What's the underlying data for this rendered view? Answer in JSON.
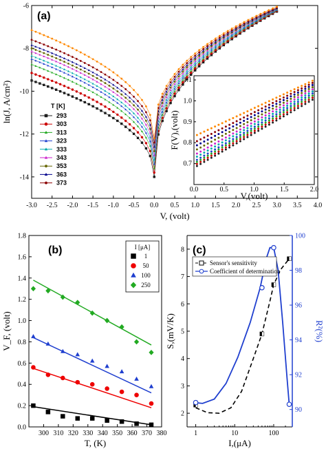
{
  "chart_data": [
    {
      "panel": "(a)",
      "type": "scatter",
      "xlabel": "V, (volt)",
      "ylabel": "ln(J, A/cm²)",
      "xlim": [
        -3.0,
        4.0
      ],
      "ylim": [
        -15,
        -6
      ],
      "xticks": [
        "-3.0",
        "-2.5",
        "-2.0",
        "-1.5",
        "-1.0",
        "-0.5",
        "0.0",
        "0.5",
        "1.0",
        "1.5",
        "2.0",
        "2.5",
        "3.0",
        "3.5",
        "4.0"
      ],
      "yticks": [
        "-14",
        "-12",
        "-10",
        "-8",
        "-6"
      ],
      "legend_title": "T [K]",
      "legend_position": "left",
      "colors": [
        "#222222",
        "#cc0000",
        "#22aa22",
        "#1f3fcf",
        "#00aaaa",
        "#cc22cc",
        "#666600",
        "#00008b",
        "#8b0000",
        "#ff8800"
      ],
      "series": [
        {
          "name": "293",
          "y_at_minus3": -9.5,
          "y_at_plus3": -6.28,
          "y_min": -14.0
        },
        {
          "name": "303",
          "y_at_minus3": -9.15,
          "y_at_plus3": -6.25,
          "y_min": -13.8
        },
        {
          "name": "313",
          "y_at_minus3": -8.75,
          "y_at_plus3": -6.23,
          "y_min": -13.6
        },
        {
          "name": "323",
          "y_at_minus3": -8.5,
          "y_at_plus3": -6.21,
          "y_min": -13.4
        },
        {
          "name": "333",
          "y_at_minus3": -8.35,
          "y_at_plus3": -6.19,
          "y_min": -13.2
        },
        {
          "name": "343",
          "y_at_minus3": -8.15,
          "y_at_plus3": -6.17,
          "y_min": -13.0
        },
        {
          "name": "353",
          "y_at_minus3": -8.0,
          "y_at_plus3": -6.15,
          "y_min": -12.8
        },
        {
          "name": "363",
          "y_at_minus3": -7.85,
          "y_at_plus3": -6.13,
          "y_min": -12.6
        },
        {
          "name": "373",
          "y_at_minus3": -7.6,
          "y_at_plus3": -6.1,
          "y_min": -12.4
        },
        {
          "name": "",
          "y_at_minus3": -7.15,
          "y_at_plus3": -6.05,
          "y_min": -12.2
        }
      ],
      "inset": {
        "xlabel": "V,(volt)",
        "ylabel": "F(V),(volt)",
        "xlim": [
          0.0,
          2.0
        ],
        "ylim": [
          0.6,
          1.12
        ],
        "xticks": [
          "0.0",
          "0.5",
          "1.0",
          "1.5",
          "2.0"
        ],
        "yticks": [
          "0.7",
          "0.8",
          "0.9",
          "1.0",
          "1.1"
        ],
        "series": [
          {
            "y0": 0.68,
            "y1": 1.01
          },
          {
            "y0": 0.69,
            "y1": 1.02
          },
          {
            "y0": 0.7,
            "y1": 1.03
          },
          {
            "y0": 0.71,
            "y1": 1.04
          },
          {
            "y0": 0.725,
            "y1": 1.05
          },
          {
            "y0": 0.74,
            "y1": 1.06
          },
          {
            "y0": 0.76,
            "y1": 1.07
          },
          {
            "y0": 0.78,
            "y1": 1.08
          },
          {
            "y0": 0.8,
            "y1": 1.09
          },
          {
            "y0": 0.83,
            "y1": 1.1
          }
        ]
      }
    },
    {
      "panel": "(b)",
      "type": "scatter",
      "xlabel": "T, (K)",
      "ylabel": "V_F, (volt)",
      "xlim": [
        290,
        380
      ],
      "ylim": [
        0.0,
        1.8
      ],
      "xticks": [
        "300",
        "310",
        "320",
        "330",
        "340",
        "350",
        "360",
        "370",
        "380"
      ],
      "yticks": [
        "0.0",
        "0.2",
        "0.4",
        "0.6",
        "0.8",
        "1.0",
        "1.2",
        "1.4",
        "1.6",
        "1.8"
      ],
      "legend_title": "I [μA]",
      "legend_position": "top-right",
      "x": [
        293,
        303,
        313,
        323,
        333,
        343,
        353,
        363,
        373
      ],
      "series": [
        {
          "name": "1",
          "marker": "square",
          "color": "#000000",
          "values": [
            0.2,
            0.14,
            0.1,
            0.08,
            0.08,
            0.06,
            0.05,
            0.03,
            0.02
          ],
          "fit": [
            0.19,
            0.02
          ]
        },
        {
          "name": "50",
          "marker": "circle",
          "color": "#ee0000",
          "values": [
            0.56,
            0.49,
            0.46,
            0.42,
            0.4,
            0.36,
            0.33,
            0.3,
            0.22
          ],
          "fit": [
            0.55,
            0.18
          ]
        },
        {
          "name": "100",
          "marker": "triangle",
          "color": "#1f3fcf",
          "values": [
            0.85,
            0.78,
            0.71,
            0.68,
            0.62,
            0.57,
            0.52,
            0.45,
            0.38
          ],
          "fit": [
            0.84,
            0.32
          ]
        },
        {
          "name": "250",
          "marker": "diamond",
          "color": "#22aa22",
          "values": [
            1.3,
            1.28,
            1.22,
            1.17,
            1.07,
            1.0,
            0.94,
            0.8,
            0.7
          ],
          "fit": [
            1.38,
            0.77
          ]
        }
      ]
    },
    {
      "panel": "(c)",
      "type": "line",
      "xlabel": "I,(μA)",
      "ylabel": "S,(mV/K)",
      "ylabel_right": "R²(%)",
      "xscale": "log",
      "xlim": [
        0.6,
        300
      ],
      "ylim": [
        1.5,
        8.5
      ],
      "ylim_right": [
        89,
        100
      ],
      "xticks": [
        "1",
        "10",
        "100"
      ],
      "yticks": [
        "2",
        "3",
        "4",
        "5",
        "6",
        "7",
        "8"
      ],
      "yticks_right": [
        "90",
        "92",
        "94",
        "96",
        "98",
        "100"
      ],
      "legend_position": "top-left",
      "series": [
        {
          "name": "Sensor's sensitivity",
          "style": "dashed",
          "color": "#000000",
          "marker": "square",
          "x": [
            1,
            50,
            100,
            250
          ],
          "values": [
            2.3,
            4.9,
            6.7,
            7.65
          ],
          "curve_x": [
            1,
            2,
            4,
            8,
            15,
            30,
            50,
            80,
            100,
            150,
            250
          ],
          "curve_values": [
            2.2,
            2.02,
            2.0,
            2.2,
            2.8,
            4.0,
            4.9,
            6.1,
            6.7,
            7.25,
            7.65
          ]
        },
        {
          "name": "Coefficient of determination",
          "style": "solid",
          "color": "#1f3fcf",
          "marker": "circle",
          "axis": "right",
          "x": [
            1,
            50,
            100,
            250
          ],
          "values": [
            90.4,
            97.0,
            99.3,
            90.3
          ],
          "curve_x": [
            0.9,
            1.5,
            3,
            6,
            12,
            25,
            45,
            65,
            80,
            100,
            130,
            170,
            220,
            250
          ],
          "curve_values": [
            90.4,
            90.35,
            90.6,
            91.5,
            93.0,
            95.0,
            97.0,
            98.7,
            99.3,
            99.3,
            98.0,
            95.0,
            91.8,
            90.3
          ]
        }
      ]
    }
  ]
}
